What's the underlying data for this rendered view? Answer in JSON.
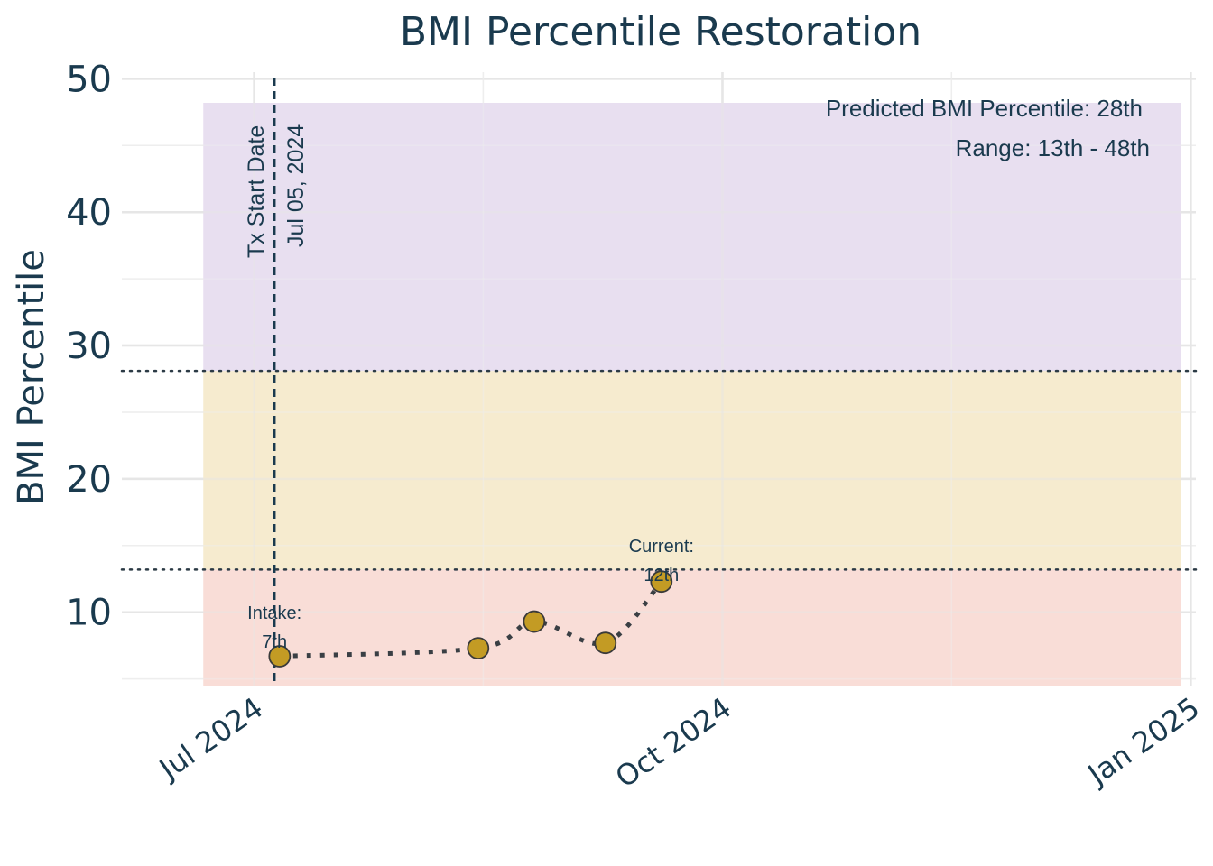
{
  "chart_data": {
    "type": "scatter",
    "title": "BMI Percentile Restoration",
    "ylabel": "BMI Percentile",
    "xlabel": "",
    "ylim": [
      4.5,
      50.5
    ],
    "xlim": [
      "2024-06-05",
      "2025-01-02"
    ],
    "yticks": [
      10,
      20,
      30,
      40,
      50
    ],
    "xticks": [
      {
        "date": "2024-07-01",
        "label": "Jul 2024"
      },
      {
        "date": "2024-10-01",
        "label": "Oct 2024"
      },
      {
        "date": "2025-01-01",
        "label": "Jan 2025"
      }
    ],
    "grid": true,
    "bands": [
      {
        "name": "below-range",
        "y0": 4.5,
        "y1": 13.2,
        "color": "#f9ddd7"
      },
      {
        "name": "lower-range",
        "y0": 13.2,
        "y1": 28.1,
        "color": "#f6ebcf"
      },
      {
        "name": "upper-range",
        "y0": 28.1,
        "y1": 48.2,
        "color": "#e8dff0"
      }
    ],
    "bands_x": [
      "2024-06-21",
      "2024-12-30"
    ],
    "hlines": [
      {
        "y": 28.1,
        "style": "dotted",
        "color": "#2b3a45"
      },
      {
        "y": 13.2,
        "style": "dotted",
        "color": "#2b3a45"
      }
    ],
    "vline": {
      "date": "2024-07-05",
      "style": "dashed",
      "color": "#1a3a4e",
      "label_line1": "Tx Start Date",
      "label_line2": "Jul 05, 2024"
    },
    "series": [
      {
        "x": [
          "2024-07-06",
          "2024-08-14",
          "2024-08-25",
          "2024-09-08",
          "2024-09-19"
        ],
        "y": [
          6.7,
          7.3,
          9.3,
          7.7,
          12.3
        ],
        "color": "#c39b24",
        "edge_color": "#3a3a3a",
        "line_style": "dotted",
        "line_color": "#3a3f44"
      }
    ],
    "annotations": [
      {
        "date": "2024-07-05",
        "y": 7,
        "line1": "Intake:",
        "line2": "7th"
      },
      {
        "date": "2024-09-19",
        "y": 12,
        "line1": "Current:",
        "line2": "12th"
      }
    ],
    "info_box": {
      "line1": "Predicted BMI Percentile: 28th",
      "line2": "Range: 13th - 48th"
    }
  }
}
